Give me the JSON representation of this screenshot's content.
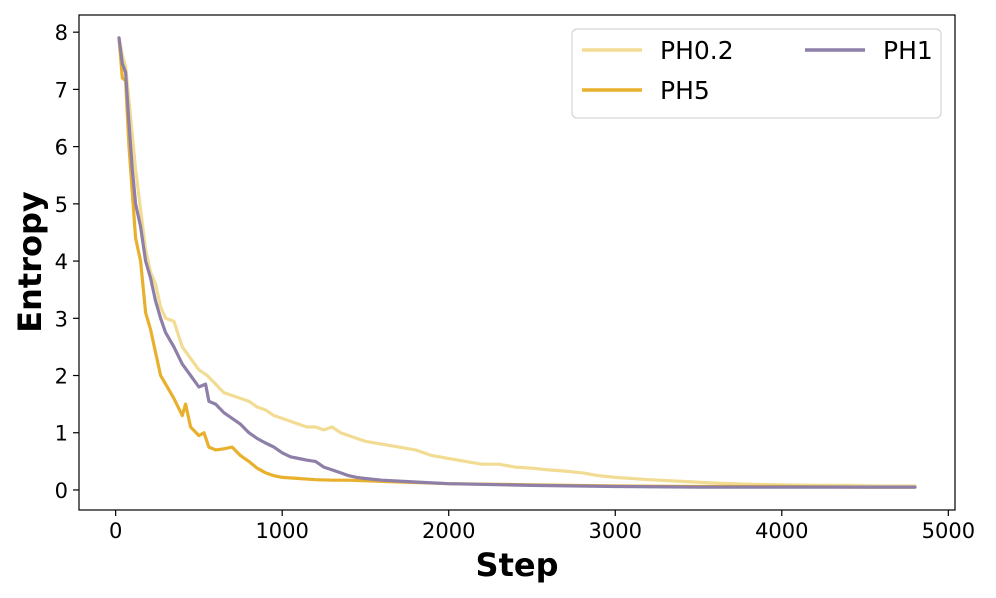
{
  "chart_data": {
    "type": "line",
    "title": "",
    "xlabel": "Step",
    "ylabel": "Entropy",
    "xlim": [
      -220,
      5040
    ],
    "ylim": [
      -0.35,
      8.3
    ],
    "xticks": [
      0,
      1000,
      2000,
      3000,
      4000,
      5000
    ],
    "yticks": [
      0,
      1,
      2,
      3,
      4,
      5,
      6,
      7,
      8
    ],
    "grid": false,
    "legend": {
      "placement": "top-right",
      "columns": 2
    },
    "series": [
      {
        "name": "PH0.2",
        "color": "#f2dc93",
        "x": [
          20,
          40,
          60,
          80,
          100,
          120,
          150,
          180,
          210,
          240,
          270,
          300,
          350,
          400,
          450,
          500,
          550,
          600,
          650,
          700,
          750,
          800,
          850,
          900,
          950,
          1000,
          1050,
          1100,
          1150,
          1200,
          1250,
          1300,
          1350,
          1400,
          1450,
          1500,
          1600,
          1700,
          1800,
          1900,
          2000,
          2100,
          2200,
          2300,
          2400,
          2500,
          2600,
          2700,
          2800,
          2900,
          3000,
          3200,
          3400,
          3600,
          3800,
          4000,
          4200,
          4400,
          4600,
          4800
        ],
        "y": [
          7.9,
          7.6,
          7.4,
          6.8,
          6.2,
          5.6,
          4.9,
          4.2,
          3.8,
          3.6,
          3.2,
          3.0,
          2.95,
          2.5,
          2.3,
          2.1,
          2.0,
          1.85,
          1.7,
          1.65,
          1.6,
          1.55,
          1.45,
          1.4,
          1.3,
          1.25,
          1.2,
          1.15,
          1.1,
          1.1,
          1.05,
          1.1,
          1.0,
          0.95,
          0.9,
          0.85,
          0.8,
          0.75,
          0.7,
          0.6,
          0.55,
          0.5,
          0.45,
          0.45,
          0.4,
          0.38,
          0.35,
          0.33,
          0.3,
          0.25,
          0.22,
          0.18,
          0.15,
          0.12,
          0.1,
          0.09,
          0.08,
          0.08,
          0.07,
          0.07
        ]
      },
      {
        "name": "PH5",
        "color": "#e8b02d",
        "x": [
          20,
          40,
          60,
          80,
          100,
          120,
          150,
          180,
          210,
          240,
          270,
          300,
          350,
          400,
          420,
          450,
          500,
          530,
          560,
          600,
          650,
          700,
          750,
          800,
          850,
          900,
          950,
          1000,
          1100,
          1200,
          1300,
          1400,
          1500,
          1600,
          1800,
          2000,
          2500,
          3000,
          3500,
          4000,
          4500,
          4800
        ],
        "y": [
          7.9,
          7.2,
          7.15,
          6.0,
          5.2,
          4.4,
          4.0,
          3.1,
          2.8,
          2.4,
          2.0,
          1.85,
          1.6,
          1.3,
          1.5,
          1.1,
          0.95,
          1.0,
          0.75,
          0.7,
          0.72,
          0.75,
          0.6,
          0.5,
          0.38,
          0.3,
          0.25,
          0.22,
          0.2,
          0.18,
          0.17,
          0.17,
          0.16,
          0.15,
          0.13,
          0.11,
          0.09,
          0.07,
          0.06,
          0.06,
          0.05,
          0.05
        ]
      },
      {
        "name": "PH1",
        "color": "#8e7fa8",
        "x": [
          20,
          40,
          60,
          80,
          100,
          120,
          150,
          180,
          210,
          240,
          270,
          300,
          350,
          400,
          450,
          500,
          540,
          560,
          600,
          650,
          700,
          750,
          800,
          850,
          900,
          950,
          1000,
          1050,
          1100,
          1150,
          1200,
          1250,
          1300,
          1350,
          1400,
          1450,
          1500,
          1600,
          1800,
          2000,
          2500,
          3000,
          3500,
          4000,
          4500,
          4800
        ],
        "y": [
          7.9,
          7.45,
          7.3,
          6.4,
          5.6,
          5.0,
          4.6,
          4.0,
          3.7,
          3.3,
          3.0,
          2.75,
          2.5,
          2.2,
          2.0,
          1.8,
          1.85,
          1.55,
          1.5,
          1.35,
          1.25,
          1.15,
          1.0,
          0.9,
          0.82,
          0.75,
          0.65,
          0.58,
          0.55,
          0.52,
          0.5,
          0.4,
          0.35,
          0.3,
          0.25,
          0.22,
          0.2,
          0.17,
          0.14,
          0.11,
          0.08,
          0.06,
          0.05,
          0.05,
          0.05,
          0.05
        ]
      }
    ]
  }
}
